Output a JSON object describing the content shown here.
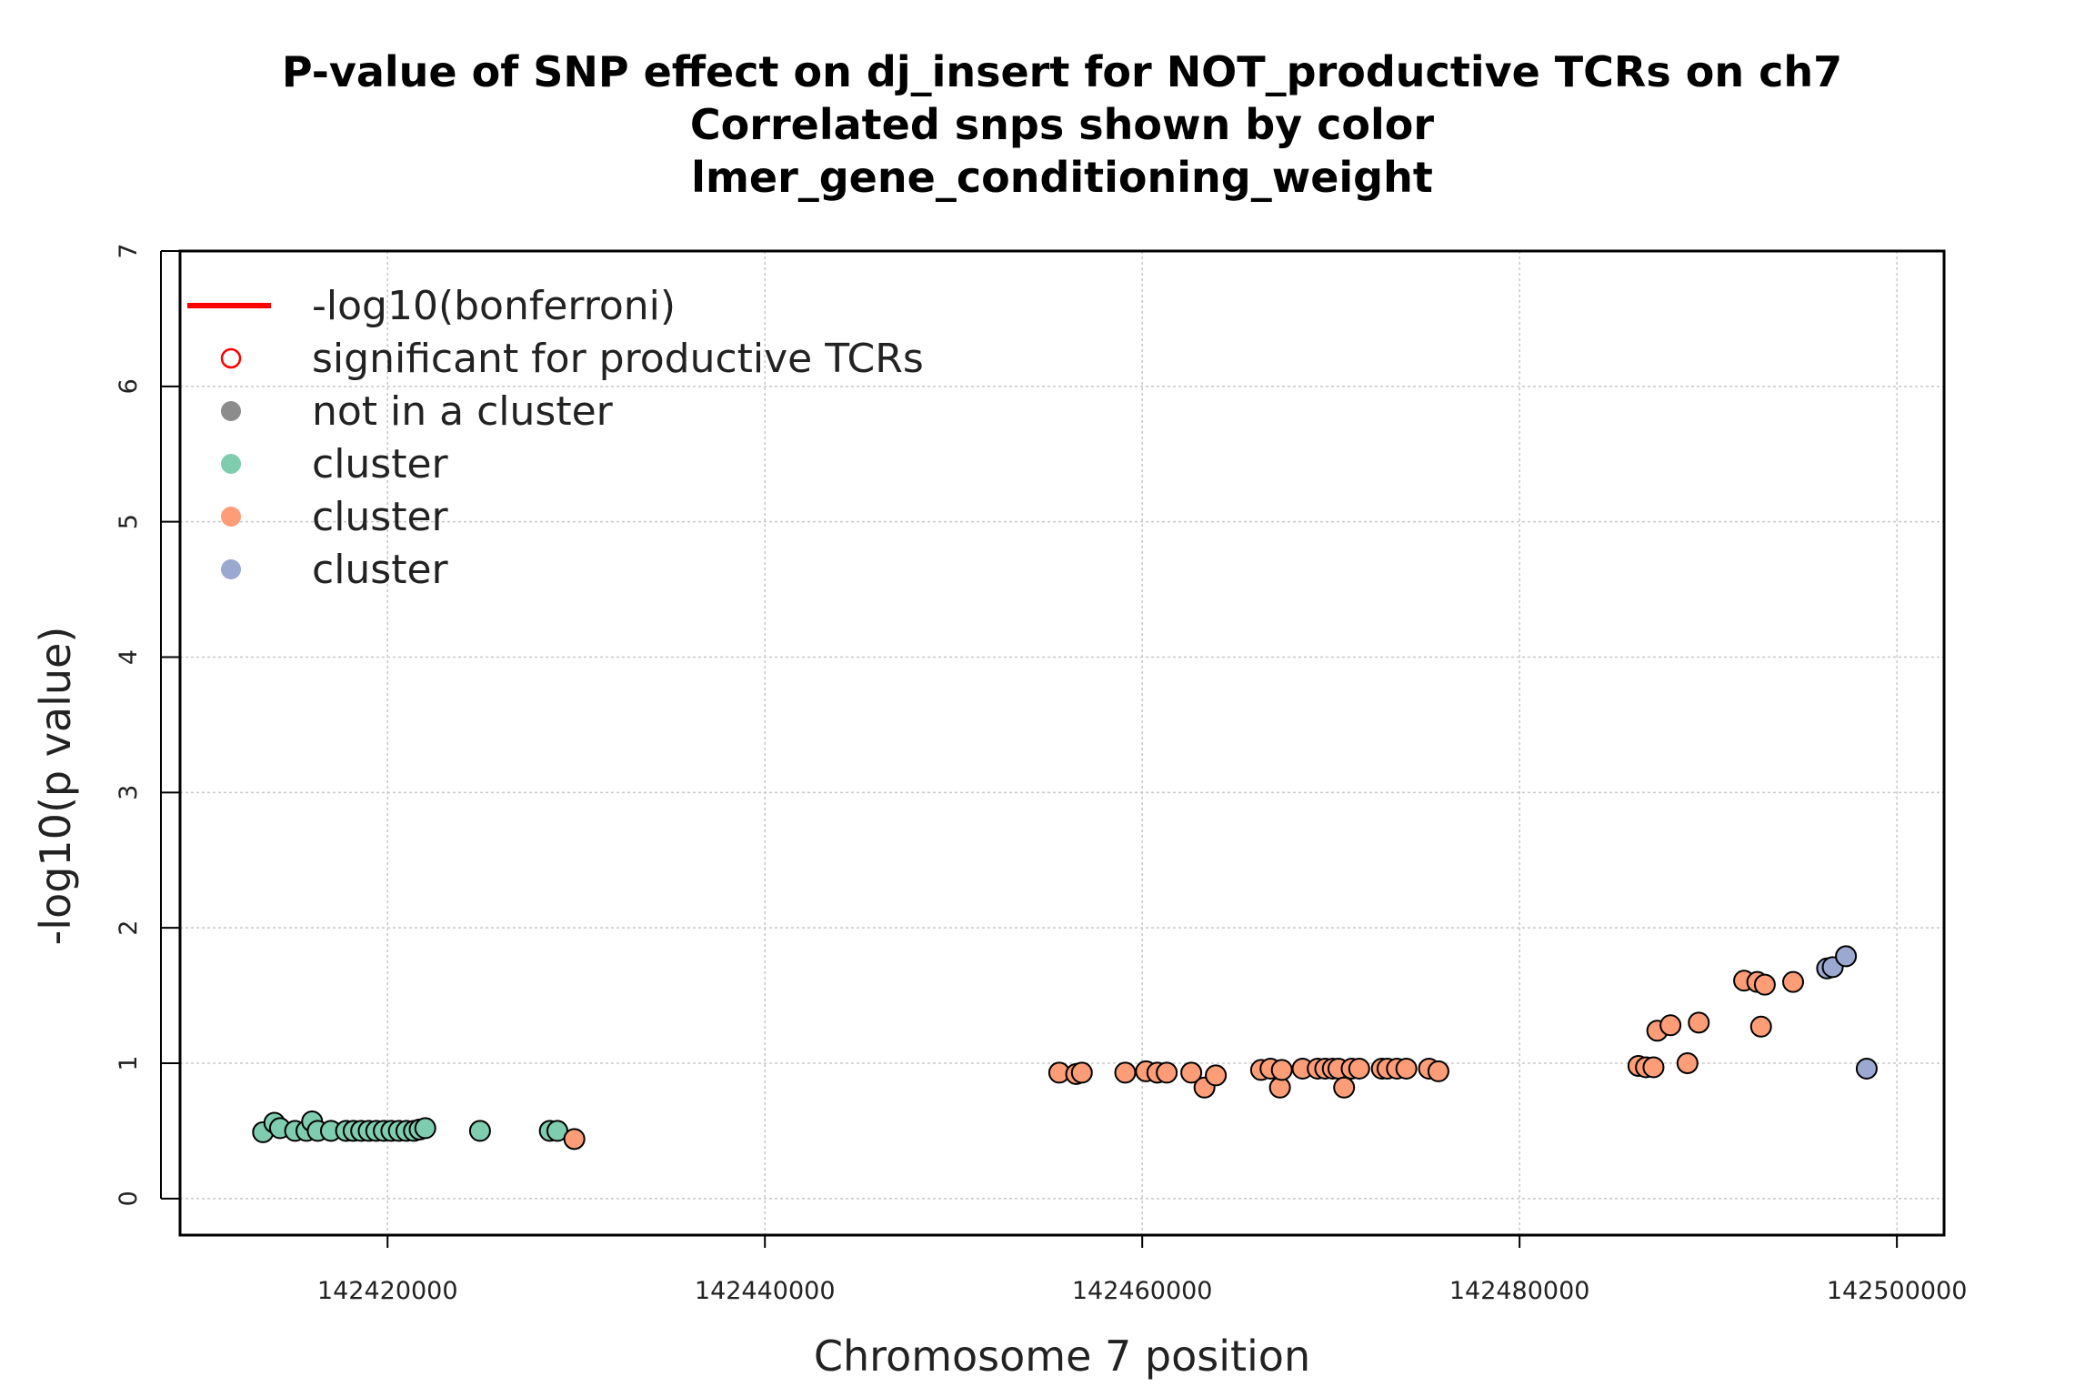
{
  "chart_data": {
    "type": "scatter",
    "title": [
      "P-value of SNP effect on dj_insert for NOT_productive TCRs on ch7",
      "Correlated snps shown by color",
      "lmer_gene_conditioning_weight"
    ],
    "xlabel": "Chromosome 7 position",
    "ylabel": "-log10(p value)",
    "xlim": [
      142409000,
      142502500
    ],
    "ylim": [
      -0.27,
      7.0
    ],
    "x_ticks": [
      142420000,
      142440000,
      142460000,
      142480000,
      142500000
    ],
    "x_tick_labels": [
      "142420000",
      "142440000",
      "142460000",
      "142480000",
      "142500000"
    ],
    "y_ticks": [
      0,
      1,
      2,
      3,
      4,
      5,
      6,
      7
    ],
    "y_tick_labels": [
      "0",
      "1",
      "2",
      "3",
      "4",
      "5",
      "6",
      "7"
    ],
    "grid": true,
    "legend_position": "top-left",
    "legend": [
      {
        "label": "-log10(bonferroni)",
        "kind": "line",
        "color": "#ff0000"
      },
      {
        "label": "significant for productive TCRs",
        "kind": "open-circle",
        "color": "#ff0000"
      },
      {
        "label": "not in a cluster",
        "kind": "filled-circle",
        "color": "#8c8c8c"
      },
      {
        "label": "cluster",
        "kind": "filled-circle",
        "color": "#7fcdaf"
      },
      {
        "label": "cluster",
        "kind": "filled-circle",
        "color": "#fc9d78"
      },
      {
        "label": "cluster",
        "kind": "filled-circle",
        "color": "#9ba8d0"
      }
    ],
    "series": [
      {
        "color": "#7fcdaf",
        "points": [
          [
            142413400,
            0.49
          ],
          [
            142414000,
            0.56
          ],
          [
            142414300,
            0.52
          ],
          [
            142415100,
            0.5
          ],
          [
            142415700,
            0.5
          ],
          [
            142416000,
            0.57
          ],
          [
            142416300,
            0.5
          ],
          [
            142417000,
            0.5
          ],
          [
            142417800,
            0.5
          ],
          [
            142418200,
            0.5
          ],
          [
            142418600,
            0.5
          ],
          [
            142419000,
            0.5
          ],
          [
            142419400,
            0.5
          ],
          [
            142419800,
            0.5
          ],
          [
            142420200,
            0.5
          ],
          [
            142420600,
            0.5
          ],
          [
            142421000,
            0.5
          ],
          [
            142421400,
            0.5
          ],
          [
            142421700,
            0.51
          ],
          [
            142422000,
            0.52
          ],
          [
            142424900,
            0.5
          ],
          [
            142428600,
            0.5
          ],
          [
            142429000,
            0.5
          ]
        ]
      },
      {
        "color": "#fc9d78",
        "points": [
          [
            142429900,
            0.44
          ],
          [
            142455600,
            0.93
          ],
          [
            142456500,
            0.92
          ],
          [
            142456800,
            0.93
          ],
          [
            142459100,
            0.93
          ],
          [
            142460200,
            0.94
          ],
          [
            142460800,
            0.93
          ],
          [
            142461300,
            0.93
          ],
          [
            142462600,
            0.93
          ],
          [
            142463300,
            0.82
          ],
          [
            142463900,
            0.91
          ],
          [
            142466300,
            0.95
          ],
          [
            142466800,
            0.96
          ],
          [
            142467300,
            0.82
          ],
          [
            142467400,
            0.95
          ],
          [
            142468500,
            0.96
          ],
          [
            142469300,
            0.96
          ],
          [
            142469700,
            0.96
          ],
          [
            142470100,
            0.96
          ],
          [
            142470400,
            0.96
          ],
          [
            142470700,
            0.82
          ],
          [
            142471100,
            0.96
          ],
          [
            142471500,
            0.96
          ],
          [
            142472700,
            0.96
          ],
          [
            142473000,
            0.96
          ],
          [
            142473500,
            0.96
          ],
          [
            142474000,
            0.96
          ],
          [
            142475200,
            0.96
          ],
          [
            142475700,
            0.94
          ],
          [
            142486300,
            0.98
          ],
          [
            142486700,
            0.97
          ],
          [
            142487100,
            0.97
          ],
          [
            142487300,
            1.24
          ],
          [
            142488000,
            1.28
          ],
          [
            142488900,
            1.0
          ],
          [
            142489500,
            1.3
          ],
          [
            142491900,
            1.61
          ],
          [
            142492600,
            1.6
          ],
          [
            142492800,
            1.27
          ],
          [
            142493000,
            1.58
          ],
          [
            142494500,
            1.6
          ]
        ]
      },
      {
        "color": "#9ba8d0",
        "points": [
          [
            142496300,
            1.7
          ],
          [
            142496600,
            1.71
          ],
          [
            142497300,
            1.79
          ],
          [
            142498400,
            0.96
          ]
        ]
      }
    ]
  }
}
